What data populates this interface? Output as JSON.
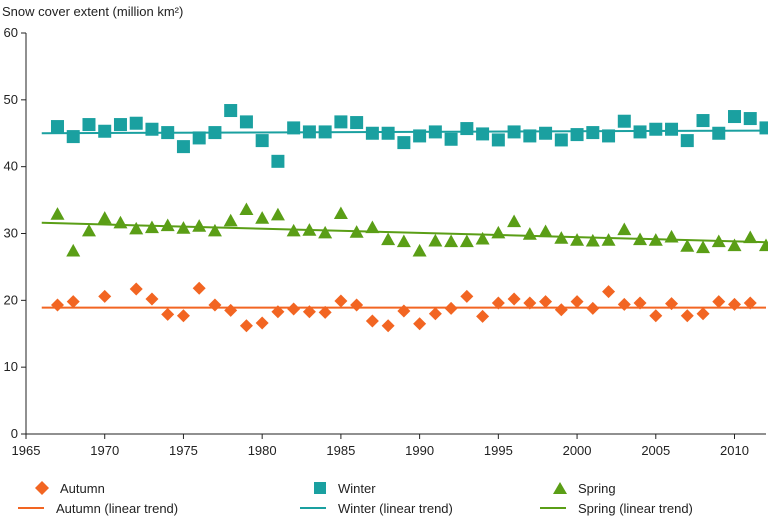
{
  "chart_data": {
    "type": "scatter",
    "ylabel": "Snow cover extent (million km²)",
    "xlabel": "",
    "xlim": [
      1965,
      2012
    ],
    "ylim": [
      0,
      60
    ],
    "xticks": [
      1965,
      1970,
      1975,
      1980,
      1985,
      1990,
      1995,
      2000,
      2005,
      2010
    ],
    "yticks": [
      0,
      10,
      20,
      30,
      40,
      50,
      60
    ],
    "grid": false,
    "legend_position": "bottom",
    "series": [
      {
        "name": "Autumn",
        "marker": "diamond",
        "color": "#f26522",
        "x": [
          1967,
          1968,
          1970,
          1972,
          1973,
          1974,
          1975,
          1976,
          1977,
          1978,
          1979,
          1980,
          1981,
          1982,
          1983,
          1984,
          1985,
          1986,
          1987,
          1988,
          1989,
          1990,
          1991,
          1992,
          1993,
          1994,
          1995,
          1996,
          1997,
          1998,
          1999,
          2000,
          2001,
          2002,
          2003,
          2004,
          2005,
          2006,
          2007,
          2008,
          2009,
          2010,
          2011
        ],
        "y": [
          19.3,
          19.8,
          20.6,
          21.7,
          20.2,
          17.9,
          17.7,
          21.8,
          19.3,
          18.5,
          16.2,
          16.6,
          18.3,
          18.7,
          18.3,
          18.2,
          19.9,
          19.3,
          16.9,
          16.2,
          18.4,
          16.5,
          18.0,
          18.8,
          20.6,
          17.6,
          19.6,
          20.2,
          19.6,
          19.8,
          18.6,
          19.8,
          18.8,
          21.3,
          19.4,
          19.6,
          17.7,
          19.5,
          17.7,
          18.0,
          19.8,
          19.4,
          19.6
        ]
      },
      {
        "name": "Winter",
        "marker": "square",
        "color": "#1aa0a0",
        "x": [
          1967,
          1968,
          1969,
          1970,
          1971,
          1972,
          1973,
          1974,
          1975,
          1976,
          1977,
          1978,
          1979,
          1980,
          1981,
          1982,
          1983,
          1984,
          1985,
          1986,
          1987,
          1988,
          1989,
          1990,
          1991,
          1992,
          1993,
          1994,
          1995,
          1996,
          1997,
          1998,
          1999,
          2000,
          2001,
          2002,
          2003,
          2004,
          2005,
          2006,
          2007,
          2008,
          2009,
          2010,
          2011,
          2012
        ],
        "y": [
          46.0,
          44.5,
          46.3,
          45.3,
          46.3,
          46.5,
          45.6,
          45.1,
          43.0,
          44.3,
          45.1,
          48.4,
          46.7,
          43.9,
          40.8,
          45.8,
          45.2,
          45.2,
          46.7,
          46.6,
          45.0,
          45.0,
          43.6,
          44.6,
          45.2,
          44.1,
          45.7,
          44.9,
          44.0,
          45.2,
          44.6,
          45.0,
          44.0,
          44.8,
          45.1,
          44.6,
          46.8,
          45.2,
          45.6,
          45.6,
          43.9,
          46.9,
          45.0,
          47.5,
          47.2,
          45.8
        ]
      },
      {
        "name": "Spring",
        "marker": "triangle",
        "color": "#5a9e16",
        "x": [
          1967,
          1968,
          1969,
          1970,
          1971,
          1972,
          1973,
          1974,
          1975,
          1976,
          1977,
          1978,
          1979,
          1980,
          1981,
          1982,
          1983,
          1984,
          1985,
          1986,
          1987,
          1988,
          1989,
          1990,
          1991,
          1992,
          1993,
          1994,
          1995,
          1996,
          1997,
          1998,
          1999,
          2000,
          2001,
          2002,
          2003,
          2004,
          2005,
          2006,
          2007,
          2008,
          2009,
          2010,
          2011,
          2012
        ],
        "y": [
          32.9,
          27.4,
          30.4,
          32.3,
          31.6,
          30.7,
          30.9,
          31.2,
          30.8,
          31.1,
          30.4,
          31.9,
          33.6,
          32.3,
          32.8,
          30.4,
          30.5,
          30.1,
          33.0,
          30.2,
          30.9,
          29.1,
          28.8,
          27.4,
          28.9,
          28.8,
          28.8,
          29.2,
          30.1,
          31.8,
          29.9,
          30.3,
          29.3,
          29.0,
          28.9,
          29.0,
          30.6,
          29.1,
          29.0,
          29.5,
          28.1,
          27.9,
          28.8,
          28.2,
          29.4,
          28.2
        ]
      }
    ],
    "trends": [
      {
        "name": "Autumn (linear trend)",
        "color": "#f26522",
        "x": [
          1966,
          2012
        ],
        "y": [
          18.9,
          18.9
        ]
      },
      {
        "name": "Winter (linear trend)",
        "color": "#1aa0a0",
        "x": [
          1966,
          2012
        ],
        "y": [
          45.0,
          45.4
        ]
      },
      {
        "name": "Spring (linear trend)",
        "color": "#5a9e16",
        "x": [
          1966,
          2012
        ],
        "y": [
          31.6,
          28.7
        ]
      }
    ]
  },
  "legend": {
    "autumn": "Autumn",
    "winter": "Winter",
    "spring": "Spring",
    "autumn_trend": "Autumn (linear trend)",
    "winter_trend": "Winter (linear trend)",
    "spring_trend": "Spring (linear trend)"
  }
}
